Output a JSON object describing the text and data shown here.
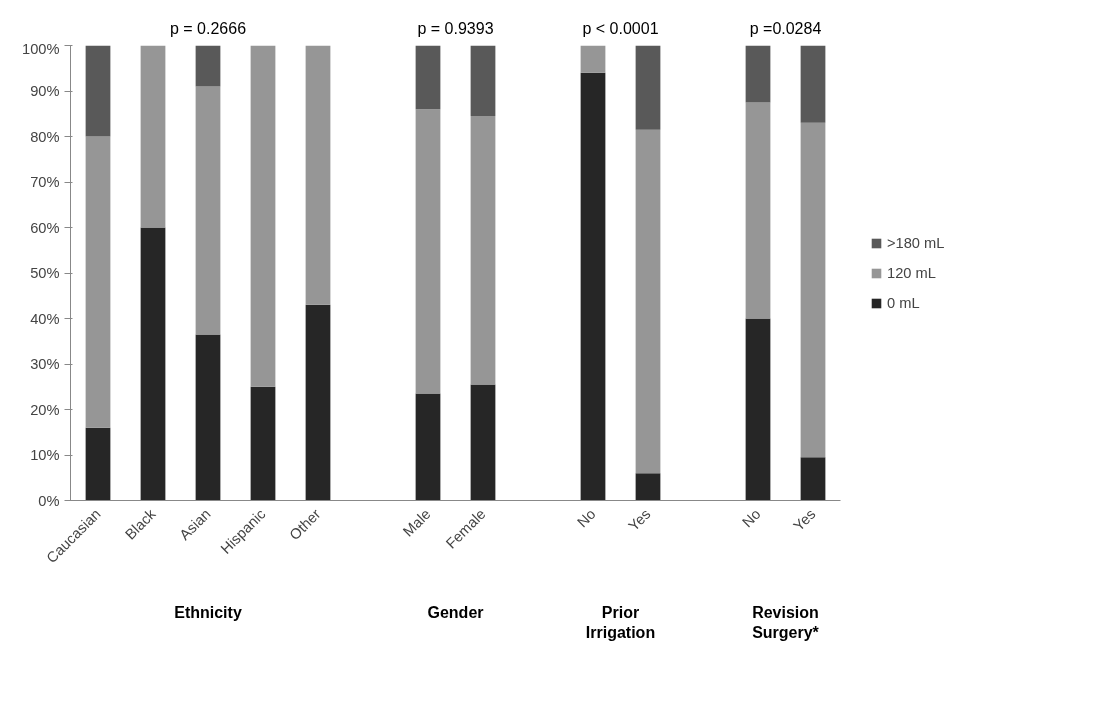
{
  "chart_data": {
    "type": "bar",
    "stacked": true,
    "legend": "right",
    "categories": [
      "Caucasian",
      "Black",
      "Asian",
      "Hispanic",
      "Other",
      null,
      "Male",
      "Female",
      null,
      "No",
      "Yes",
      null,
      "No",
      "Yes"
    ],
    "series": [
      {
        "name": "0 mL",
        "color": "#262626",
        "values": [
          16,
          60,
          36.5,
          25,
          43,
          null,
          23.5,
          25.5,
          null,
          94,
          6,
          null,
          40,
          9.5
        ]
      },
      {
        "name": "120 mL",
        "color": "#969696",
        "values": [
          64,
          40,
          54.5,
          75,
          57,
          null,
          62.5,
          59,
          null,
          6,
          75.5,
          null,
          47.5,
          73.5
        ]
      },
      {
        "name": ">180 mL",
        "color": "#595959",
        "values": [
          20,
          0,
          9,
          0,
          0,
          null,
          14,
          15.5,
          null,
          0,
          18.5,
          null,
          12.5,
          17
        ]
      }
    ],
    "ylim": [
      0,
      100
    ],
    "yticks": [
      {
        "value": 0,
        "label": "0%"
      },
      {
        "value": 10,
        "label": "10%"
      },
      {
        "value": 20,
        "label": "20%"
      },
      {
        "value": 30,
        "label": "30%"
      },
      {
        "value": 40,
        "label": "40%"
      },
      {
        "value": 50,
        "label": "50%"
      },
      {
        "value": 60,
        "label": "60%"
      },
      {
        "value": 70,
        "label": "70%"
      },
      {
        "value": 80,
        "label": "80%"
      },
      {
        "value": 90,
        "label": "90%"
      },
      {
        "value": 100,
        "label": "100%"
      }
    ],
    "grid": false,
    "annotations": [
      "p = 0.2666",
      "p = 0.9393",
      "p < 0.0001",
      "p =0.0284",
      "Ethnicity",
      "Gender",
      "Prior Irrigation",
      "Revision Surgery*"
    ]
  }
}
